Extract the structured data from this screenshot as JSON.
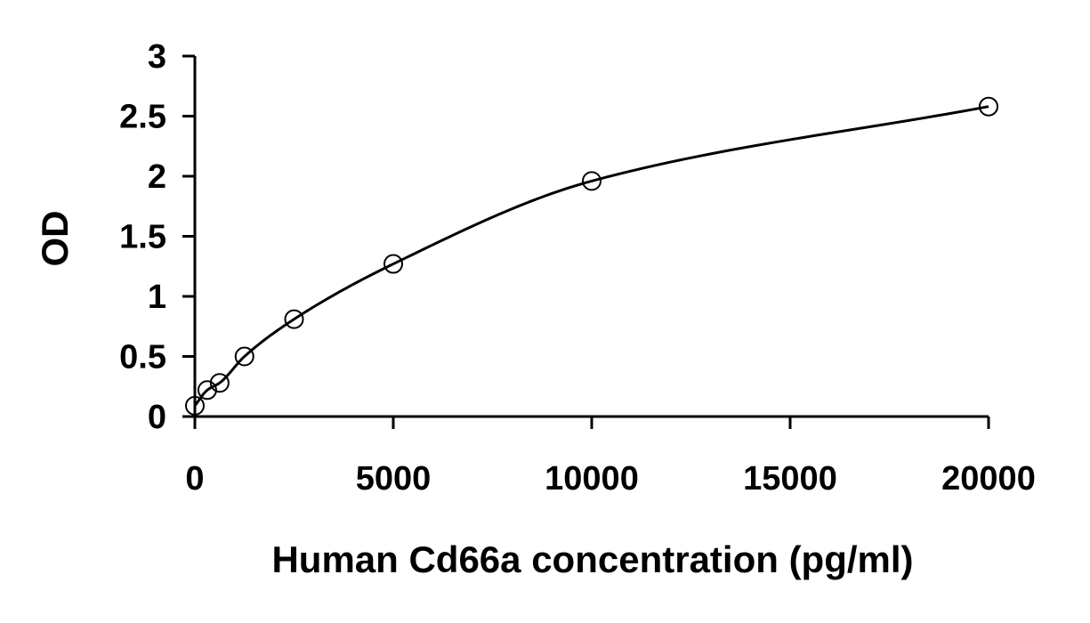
{
  "chart_data": {
    "type": "scatter",
    "title": "",
    "xlabel": "Human Cd66a concentration (pg/ml)",
    "ylabel": "OD",
    "xlim": [
      0,
      20000
    ],
    "ylim": [
      0,
      3
    ],
    "x_ticks": [
      0,
      5000,
      10000,
      15000,
      20000
    ],
    "x_tick_labels": [
      "0",
      "5000",
      "10000",
      "15000",
      "20000"
    ],
    "y_ticks": [
      0,
      0.5,
      1,
      1.5,
      2,
      2.5,
      3
    ],
    "y_tick_labels": [
      "0",
      "0.5",
      "1",
      "1.5",
      "2",
      "2.5",
      "3"
    ],
    "grid": false,
    "legend": "none",
    "series": [
      {
        "marker": "open-circle",
        "x": [
          0,
          312.5,
          625,
          1250,
          2500,
          5000,
          10000,
          20000
        ],
        "y": [
          0.09,
          0.22,
          0.28,
          0.5,
          0.81,
          1.27,
          1.96,
          2.58
        ]
      }
    ],
    "fit_curve": {
      "style": "smooth-line",
      "color": "#000000"
    }
  }
}
